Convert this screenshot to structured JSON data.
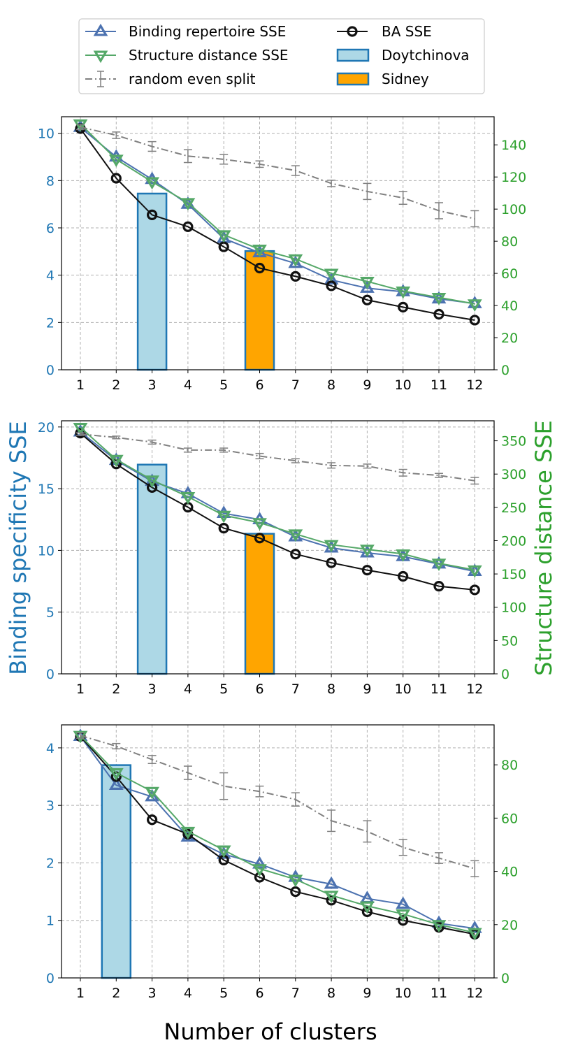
{
  "figure": {
    "xlabel": "Number of clusters",
    "left_ylabel": "Binding specificity SSE",
    "right_ylabel": "Structure distance SSE"
  },
  "colors": {
    "binding": "#4c72b0",
    "structure": "#55a868",
    "random": "#808080",
    "ba": "#111111",
    "doytchinova_fill": "#add8e6",
    "sidney_fill": "#ffa500",
    "bar_edge": "#1f77b4",
    "left_axis": "#1f77b4",
    "right_axis": "#2ca02c"
  },
  "legend": [
    {
      "key": "binding",
      "label": "Binding repertoire SSE",
      "marker": "triangle-up"
    },
    {
      "key": "ba",
      "label": "BA SSE",
      "marker": "circle"
    },
    {
      "key": "structure",
      "label": "Structure distance SSE",
      "marker": "triangle-down"
    },
    {
      "key": "doytchinova",
      "label": "Doytchinova",
      "marker": "bar"
    },
    {
      "key": "random",
      "label": "random even split",
      "marker": "errorbar"
    },
    {
      "key": "sidney",
      "label": "Sidney",
      "marker": "bar"
    }
  ],
  "chart_data": [
    {
      "type": "line",
      "x": [
        1,
        2,
        3,
        4,
        5,
        6,
        7,
        8,
        9,
        10,
        11,
        12
      ],
      "ylim": [
        0,
        10.7
      ],
      "y_ticks": [
        0,
        2,
        4,
        6,
        8,
        10
      ],
      "y2lim": [
        0,
        157.5
      ],
      "y2_ticks": [
        0,
        20,
        40,
        60,
        80,
        100,
        120,
        140
      ],
      "grid": true,
      "bars": [
        {
          "name": "Doytchinova",
          "x": 3,
          "value": 7.45
        },
        {
          "name": "Sidney",
          "x": 6,
          "value": 5.02
        }
      ],
      "series": [
        {
          "name": "Binding repertoire SSE",
          "axis": "left",
          "values": [
            10.25,
            9.0,
            8.05,
            7.0,
            5.55,
            4.95,
            4.5,
            3.8,
            3.45,
            3.3,
            3.0,
            2.8
          ]
        },
        {
          "name": "BA SSE",
          "axis": "left",
          "values": [
            10.2,
            8.1,
            6.55,
            6.05,
            5.2,
            4.3,
            3.95,
            3.55,
            2.95,
            2.65,
            2.35,
            2.1
          ]
        },
        {
          "name": "Structure distance SSE",
          "axis": "right",
          "values": [
            153,
            131,
            117,
            104,
            84,
            75,
            69,
            60,
            55,
            49,
            45,
            41
          ]
        },
        {
          "name": "random even split",
          "axis": "right",
          "values": [
            151,
            146,
            139,
            133,
            131,
            128,
            124,
            116,
            111,
            107,
            99,
            94
          ],
          "errors": [
            1.5,
            2,
            3,
            4,
            3,
            2,
            3,
            2,
            5,
            4,
            5,
            5
          ]
        }
      ]
    },
    {
      "type": "line",
      "x": [
        1,
        2,
        3,
        4,
        5,
        6,
        7,
        8,
        9,
        10,
        11,
        12
      ],
      "ylim": [
        0,
        20.5
      ],
      "y_ticks": [
        0,
        5,
        10,
        15,
        20
      ],
      "y2lim": [
        0,
        380
      ],
      "y2_ticks": [
        0,
        50,
        100,
        150,
        200,
        250,
        300,
        350
      ],
      "grid": true,
      "bars": [
        {
          "name": "Doytchinova",
          "x": 3,
          "value": 16.95
        },
        {
          "name": "Sidney",
          "x": 6,
          "value": 11.35
        }
      ],
      "series": [
        {
          "name": "Binding repertoire SSE",
          "axis": "left",
          "values": [
            19.6,
            17.3,
            15.6,
            14.6,
            13.0,
            12.5,
            11.1,
            10.2,
            9.8,
            9.5,
            8.9,
            8.3
          ]
        },
        {
          "name": "BA SSE",
          "axis": "left",
          "values": [
            19.5,
            17.0,
            15.1,
            13.5,
            11.8,
            11.0,
            9.7,
            9.0,
            8.4,
            7.9,
            7.1,
            6.8
          ]
        },
        {
          "name": "Structure distance SSE",
          "axis": "right",
          "values": [
            370,
            322,
            291,
            266,
            238,
            227,
            210,
            194,
            187,
            180,
            166,
            156
          ]
        },
        {
          "name": "random even split",
          "axis": "right",
          "values": [
            360,
            355,
            348,
            336,
            336,
            327,
            320,
            313,
            312,
            302,
            298,
            290
          ],
          "errors": [
            2,
            2,
            3,
            3,
            3,
            4,
            3,
            4,
            3,
            5,
            3,
            5
          ]
        }
      ]
    },
    {
      "type": "line",
      "x": [
        1,
        2,
        3,
        4,
        5,
        6,
        7,
        8,
        9,
        10,
        11,
        12
      ],
      "ylim": [
        0,
        4.4
      ],
      "y_ticks": [
        0,
        1,
        2,
        3,
        4
      ],
      "y2lim": [
        0,
        95
      ],
      "y2_ticks": [
        0,
        20,
        40,
        60,
        80
      ],
      "grid": true,
      "bars": [
        {
          "name": "Doytchinova",
          "x": 2,
          "value": 3.7
        }
      ],
      "series": [
        {
          "name": "Binding repertoire SSE",
          "axis": "left",
          "values": [
            4.2,
            3.35,
            3.15,
            2.45,
            2.15,
            1.98,
            1.75,
            1.63,
            1.38,
            1.28,
            0.95,
            0.86
          ]
        },
        {
          "name": "BA SSE",
          "axis": "left",
          "values": [
            4.2,
            3.5,
            2.75,
            2.5,
            2.05,
            1.75,
            1.5,
            1.35,
            1.15,
            1.0,
            0.88,
            0.76
          ]
        },
        {
          "name": "Structure distance SSE",
          "axis": "right",
          "values": [
            91,
            77,
            70,
            55,
            48,
            41,
            37,
            31,
            27,
            24,
            20,
            17
          ]
        },
        {
          "name": "random even split",
          "axis": "right",
          "values": [
            91,
            87,
            82,
            77,
            72,
            70,
            67,
            59,
            55,
            49,
            45,
            41
          ],
          "errors": [
            1,
            1,
            1.5,
            2.5,
            5,
            2,
            2.5,
            4,
            4,
            3,
            2,
            3
          ]
        }
      ]
    }
  ]
}
